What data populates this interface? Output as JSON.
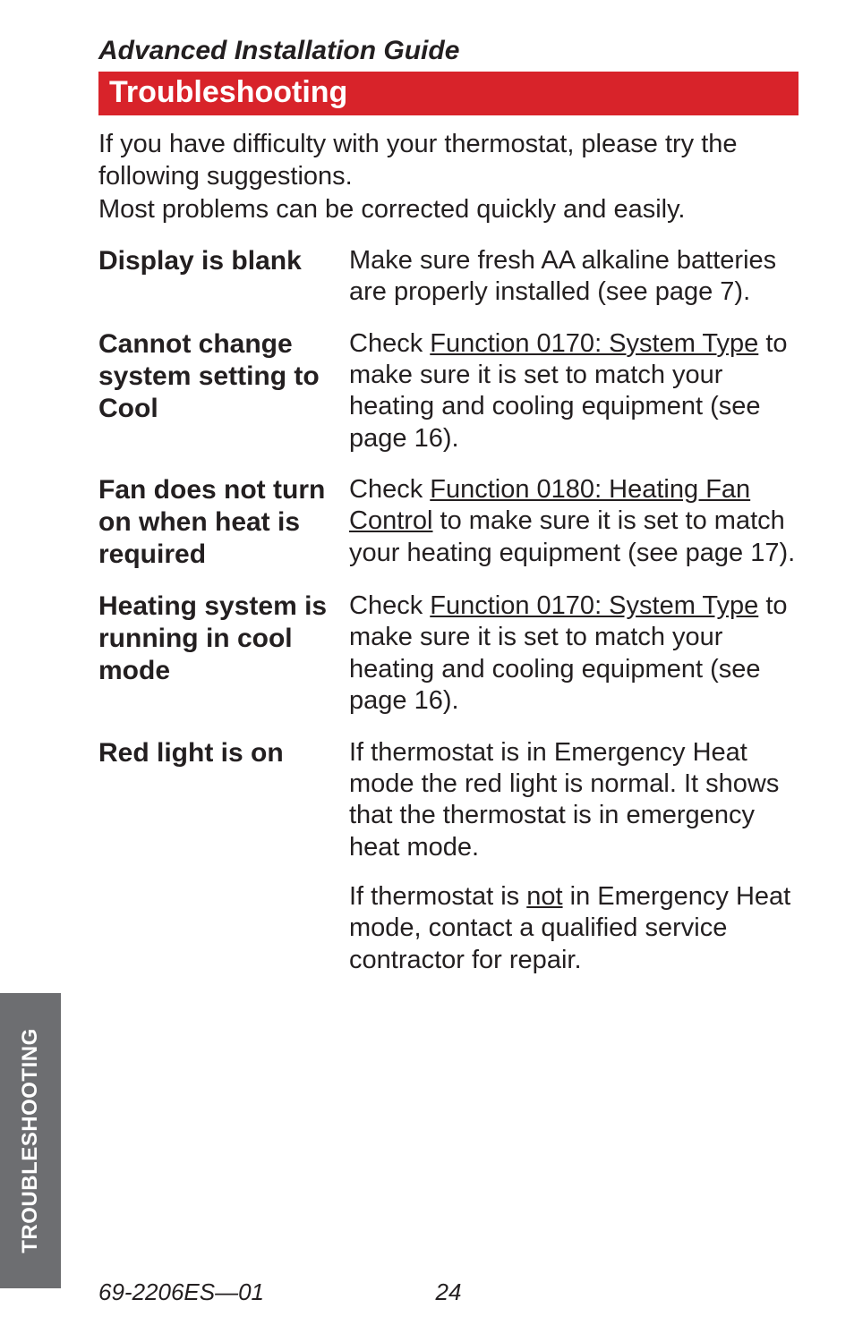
{
  "guide_title": "Advanced Installation Guide",
  "section_header": "Troubleshooting",
  "intro_line1": "If you have difficulty with your thermostat, please try the following suggestions.",
  "intro_line2": "Most problems can be corrected quickly and easily.",
  "rows": {
    "display_blank": {
      "label": "Display is blank",
      "body": "Make sure fresh AA alkaline batteries are properly installed (see page 7)."
    },
    "cannot_change": {
      "label": "Cannot change system setting to Cool",
      "pre": "Check ",
      "link": "Function 0170: System Type",
      "post": " to make sure it is set to match your heating and cooling equipment (see page 16)."
    },
    "fan_no_turn": {
      "label": "Fan does not turn on when heat is required",
      "pre": "Check ",
      "link": "Function 0180: Heating Fan Control",
      "post": " to make sure it is set to match your heating equipment (see page 17)."
    },
    "heating_cool": {
      "label": "Heating system is running in cool mode",
      "pre": "Check ",
      "link": "Function 0170: System Type",
      "post": " to make sure it is set to match your heating and cooling equipment (see page 16)."
    },
    "red_light": {
      "label": "Red light is on",
      "p1": "If thermostat is in Emergency Heat mode the red light is normal. It shows that the thermostat is in emergency heat mode.",
      "p2_pre": "If thermostat is ",
      "p2_u": "not",
      "p2_post": " in Emergency Heat mode, contact a qualified service contractor for repair."
    }
  },
  "side_tab": "TROUBLESHOOTING",
  "footer": {
    "doc_num": "69-2206ES—01",
    "page_num": "24"
  },
  "colors": {
    "header_bg": "#d8232a",
    "tab_bg": "#6d6e71",
    "text": "#231f20"
  }
}
